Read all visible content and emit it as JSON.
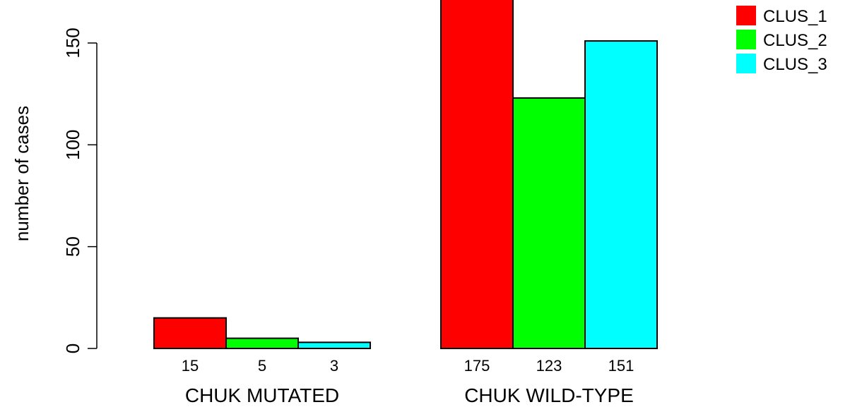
{
  "chart_data": {
    "type": "bar",
    "ylabel": "number of cases",
    "y_ticks": [
      "0",
      "50",
      "100",
      "150"
    ],
    "ylim": [
      0,
      175
    ],
    "groups": [
      {
        "label": "CHUK MUTATED",
        "bars": [
          {
            "series": "CLUS_1",
            "value": 15,
            "label": "15"
          },
          {
            "series": "CLUS_2",
            "value": 5,
            "label": "5"
          },
          {
            "series": "CLUS_3",
            "value": 3,
            "label": "3"
          }
        ]
      },
      {
        "label": "CHUK WILD-TYPE",
        "bars": [
          {
            "series": "CLUS_1",
            "value": 175,
            "label": "175"
          },
          {
            "series": "CLUS_2",
            "value": 123,
            "label": "123"
          },
          {
            "series": "CLUS_3",
            "value": 151,
            "label": "151"
          }
        ]
      }
    ],
    "legend": {
      "position": "top-right",
      "entries": [
        {
          "name": "CLUS_1",
          "color": "#ff0000"
        },
        {
          "name": "CLUS_2",
          "color": "#00ff00"
        },
        {
          "name": "CLUS_3",
          "color": "#00ffff"
        }
      ]
    },
    "grid": false
  }
}
